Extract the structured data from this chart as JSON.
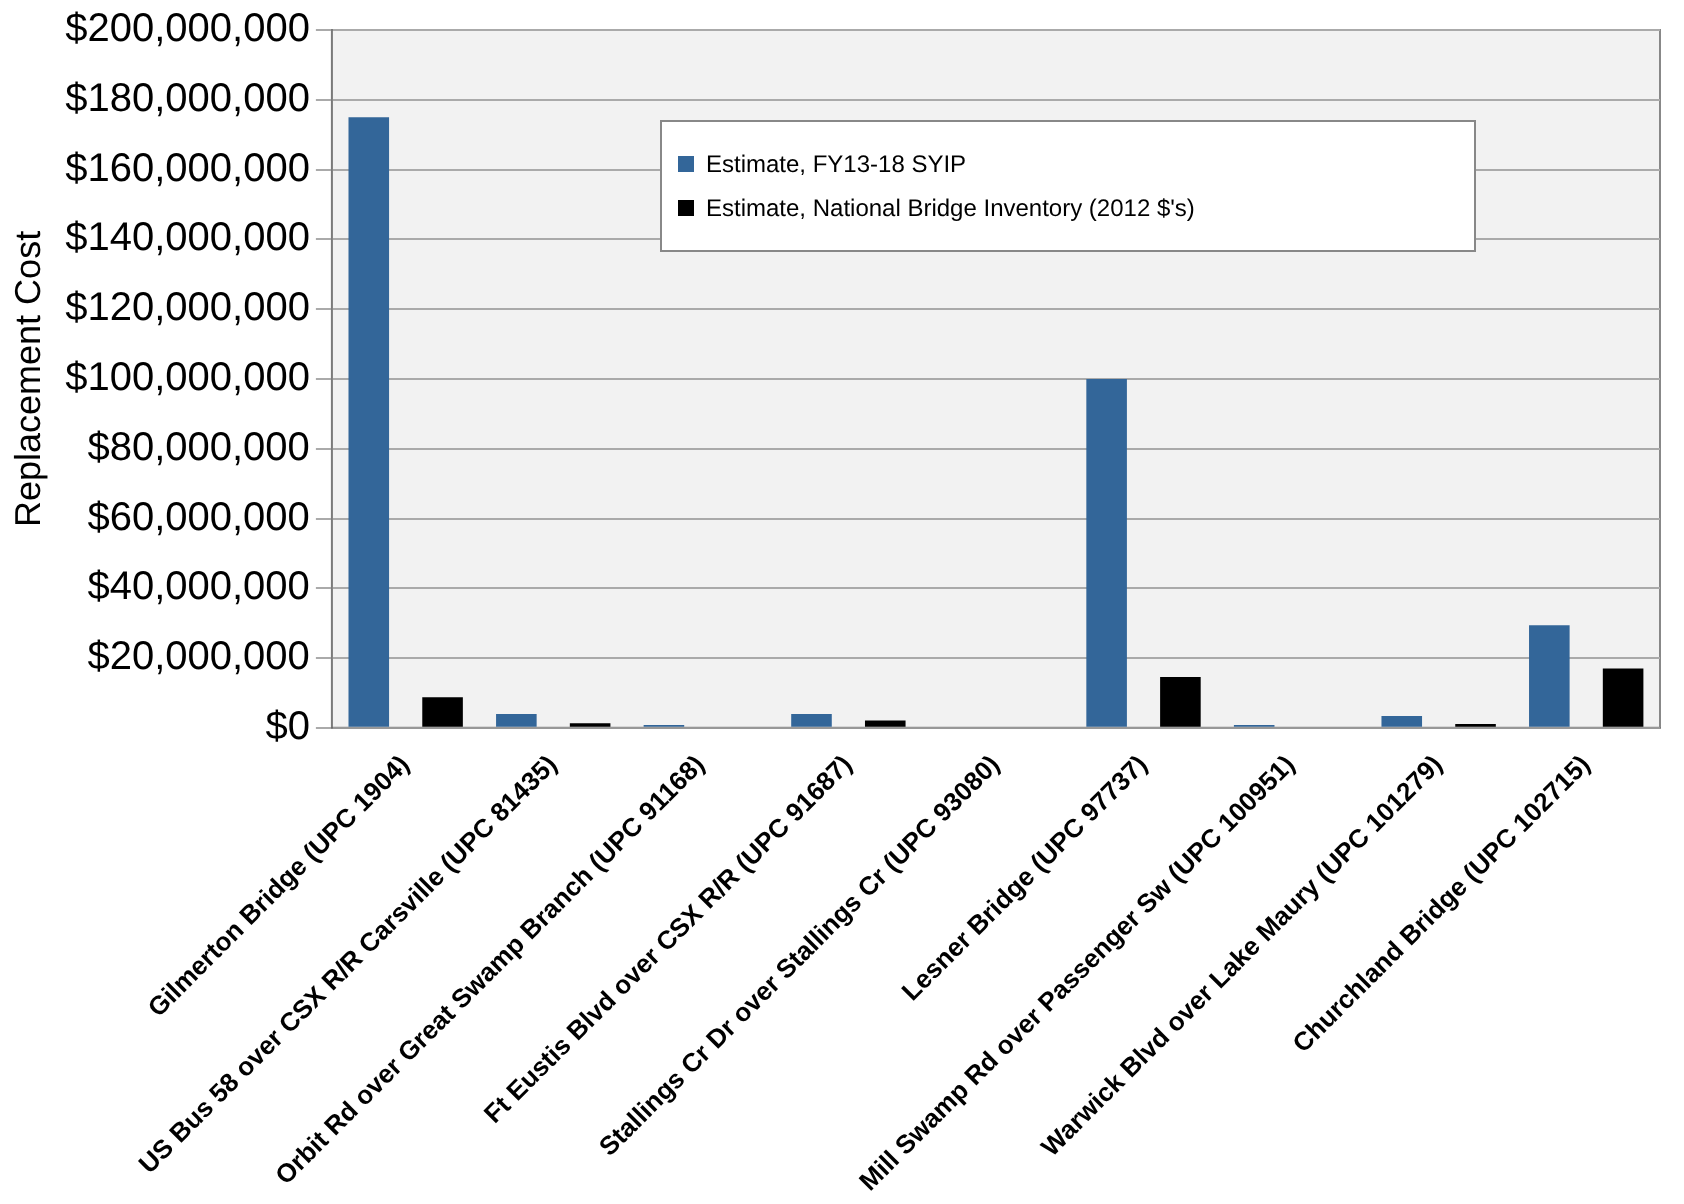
{
  "chart_data": {
    "type": "bar",
    "ylabel": "Replacement Cost",
    "categories": [
      "Gilmerton Bridge (UPC 1904)",
      "US Bus 58 over CSX R/R Carsville (UPC 81435)",
      "Orbit Rd over Great Swamp Branch (UPC 91168)",
      "Ft Eustis Blvd over CSX R/R (UPC 91687)",
      "Stallings Cr Dr over Stallings Cr (UPC 93080)",
      "Lesner Bridge (UPC 97737)",
      "Mill Swamp Rd over Passenger Sw (UPC 100951)",
      "Warwick Blvd over Lake Maury (UPC 101279)",
      "Churchland Bridge (UPC 102715)"
    ],
    "series": [
      {
        "name": "Estimate, FY13-18 SYIP",
        "color": "#336699",
        "values": [
          175000000,
          4000000,
          800000,
          4000000,
          300000,
          100000000,
          800000,
          3400000,
          29400000
        ]
      },
      {
        "name": "Estimate, National Bridge Inventory (2012 $'s)",
        "color": "#000000",
        "values": [
          8800000,
          1300000,
          null,
          2100000,
          null,
          14600000,
          null,
          1100000,
          17000000
        ]
      }
    ],
    "ylim": [
      0,
      200000000
    ],
    "yticks": [
      {
        "value": 0,
        "label": "$0"
      },
      {
        "value": 20000000,
        "label": "$20,000,000"
      },
      {
        "value": 40000000,
        "label": "$40,000,000"
      },
      {
        "value": 60000000,
        "label": "$60,000,000"
      },
      {
        "value": 80000000,
        "label": "$80,000,000"
      },
      {
        "value": 100000000,
        "label": "$100,000,000"
      },
      {
        "value": 120000000,
        "label": "$120,000,000"
      },
      {
        "value": 140000000,
        "label": "$140,000,000"
      },
      {
        "value": 160000000,
        "label": "$160,000,000"
      },
      {
        "value": 180000000,
        "label": "$180,000,000"
      },
      {
        "value": 200000000,
        "label": "$200,000,000"
      }
    ],
    "grid": "y",
    "legend": "top right"
  }
}
